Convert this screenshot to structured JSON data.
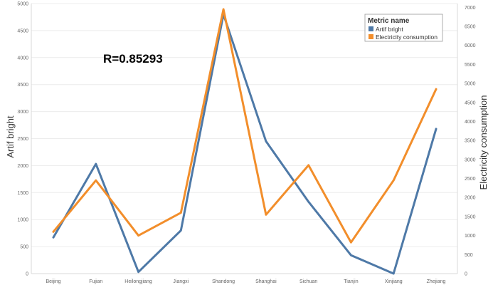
{
  "chart_data": {
    "type": "line",
    "annotation": "R=0.85293",
    "categories": [
      "Beijing",
      "Fujian",
      "Heilongjiang",
      "Jiangxi",
      "Shandong",
      "Shanghai",
      "Sichuan",
      "Tianjin",
      "Xinjiang",
      "Zhejiang"
    ],
    "series": [
      {
        "name": "Artif bright",
        "axis": "left",
        "color": "#4e79a7",
        "values": [
          670,
          2030,
          30,
          800,
          4800,
          2450,
          1330,
          340,
          0,
          2680
        ]
      },
      {
        "name": "Electricity consumption",
        "axis": "right",
        "color": "#f28e2b",
        "values": [
          1100,
          2450,
          1000,
          1600,
          6950,
          1550,
          2850,
          820,
          2450,
          4850
        ]
      }
    ],
    "y_left": {
      "label": "Artif bright",
      "range": [
        0,
        5000
      ],
      "ticks": [
        0,
        500,
        1000,
        1500,
        2000,
        2500,
        3000,
        3500,
        4000,
        4500,
        5000
      ]
    },
    "y_right": {
      "label": "Electricity consumption",
      "range": [
        0,
        7100
      ],
      "ticks": [
        0,
        500,
        1000,
        1500,
        2000,
        2500,
        3000,
        3500,
        4000,
        4500,
        5000,
        5500,
        6000,
        6500,
        7000
      ]
    },
    "legend": {
      "title": "Metric name",
      "position": "top-right"
    },
    "grid": true
  }
}
